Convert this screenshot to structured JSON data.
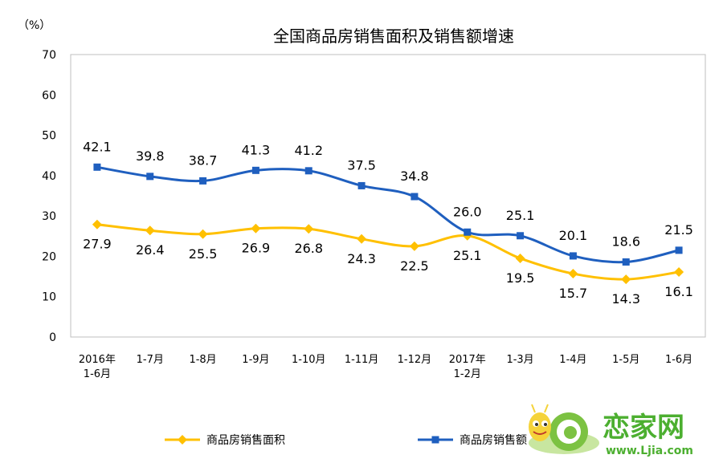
{
  "chart_data": {
    "type": "line",
    "title": "全国商品房销售面积及销售额增速",
    "unit_label": "（%）",
    "ylim": [
      0,
      70
    ],
    "y_ticks": [
      "0",
      "10",
      "20",
      "30",
      "40",
      "50",
      "60",
      "70"
    ],
    "grid": false,
    "categories": [
      [
        "2016年",
        "1-6月"
      ],
      [
        "1-7月"
      ],
      [
        "1-8月"
      ],
      [
        "1-9月"
      ],
      [
        "1-10月"
      ],
      [
        "1-11月"
      ],
      [
        "1-12月"
      ],
      [
        "2017年",
        "1-2月"
      ],
      [
        "1-3月"
      ],
      [
        "1-4月"
      ],
      [
        "1-5月"
      ],
      [
        "1-6月"
      ]
    ],
    "series": [
      {
        "name": "商品房销售面积",
        "color": "#FFC000",
        "marker": "diamond",
        "values": [
          27.9,
          26.4,
          25.5,
          26.9,
          26.8,
          24.3,
          22.5,
          25.1,
          19.5,
          15.7,
          14.3,
          16.1
        ],
        "labels": [
          "27.9",
          "26.4",
          "25.5",
          "26.9",
          "26.8",
          "24.3",
          "22.5",
          "25.1",
          "19.5",
          "15.7",
          "14.3",
          "16.1"
        ]
      },
      {
        "name": "商品房销售额",
        "color": "#1F5FBF",
        "marker": "square",
        "values": [
          42.1,
          39.8,
          38.7,
          41.3,
          41.2,
          37.5,
          34.8,
          26.0,
          25.1,
          20.1,
          18.6,
          21.5
        ],
        "labels": [
          "42.1",
          "39.8",
          "38.7",
          "41.3",
          "41.2",
          "37.5",
          "34.8",
          "26.0",
          "25.1",
          "20.1",
          "18.6",
          "21.5"
        ]
      }
    ],
    "legend": "bottom"
  },
  "watermark": {
    "brand": "恋家网",
    "url": "www.Ljia.com"
  }
}
